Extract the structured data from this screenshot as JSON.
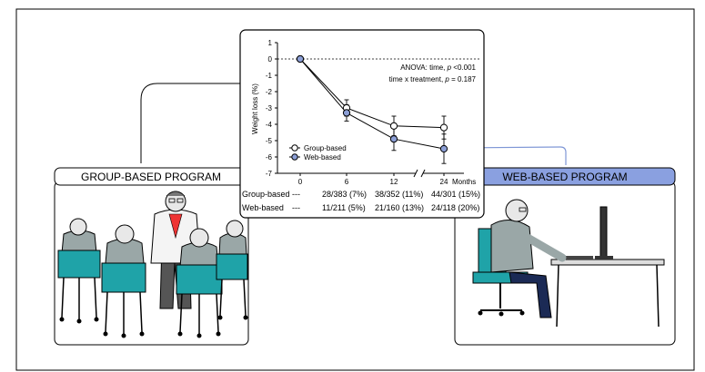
{
  "group_panel": {
    "title": "GROUP-BASED PROGRAM"
  },
  "web_panel": {
    "title": "WEB-BASED PROGRAM",
    "accent": "#8aa0e0"
  },
  "chart_data": {
    "type": "line",
    "ylabel": "Weight loss (%)",
    "x_unit": "Months",
    "x": [
      0,
      6,
      12,
      24
    ],
    "x_tick_labels": [
      "0",
      "6",
      "12",
      "24"
    ],
    "ylim": [
      -7,
      1
    ],
    "y_ticks": [
      1,
      0,
      -1,
      -2,
      -3,
      -4,
      -5,
      -6,
      -7
    ],
    "axis_break_between": [
      12,
      24
    ],
    "reference_line_y": 0,
    "series": [
      {
        "name": "Group-based",
        "values": [
          0,
          -3.0,
          -4.1,
          -4.2
        ],
        "error": [
          0,
          0.5,
          0.6,
          0.7
        ],
        "marker": "open-circle",
        "color": "#ffffff"
      },
      {
        "name": "Web-based",
        "values": [
          0,
          -3.3,
          -4.9,
          -5.5
        ],
        "error": [
          0,
          0.5,
          0.7,
          0.9
        ],
        "marker": "filled-circle",
        "color": "#8c9fd6"
      }
    ],
    "annotations": [
      "ANOVA: time, p <0.001",
      "time x treatment, p = 0.187"
    ],
    "annotation_parts": {
      "line1": {
        "prefix": "ANOVA: time, ",
        "italic": "p",
        "suffix": " <0.001"
      },
      "line2": {
        "prefix": "time x treatment, ",
        "italic": "p",
        "suffix": " = 0.187"
      }
    },
    "legend_position": "bottom-left"
  },
  "dropout_table": {
    "rows": [
      {
        "label": "Group-based",
        "cells": [
          "---",
          "28/383 (7%)",
          "38/352 (11%)",
          "44/301 (15%)"
        ]
      },
      {
        "label": "Web-based",
        "cells": [
          "---",
          "11/211 (5%)",
          "21/160 (13%)",
          "24/118 (20%)"
        ]
      }
    ]
  }
}
